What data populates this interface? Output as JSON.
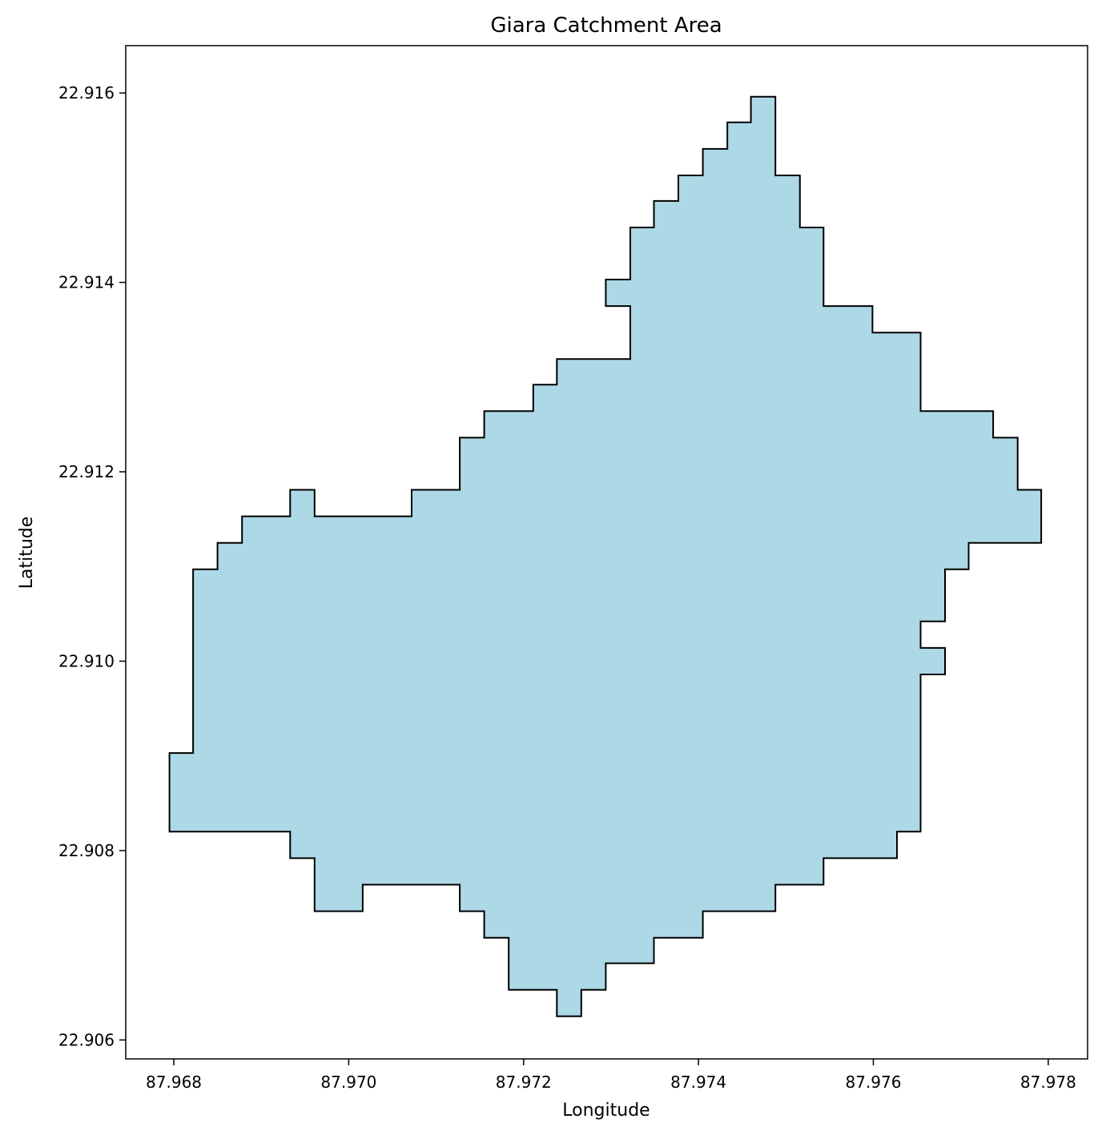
{
  "title": "Giara Catchment Area",
  "xlabel": "Longitude",
  "ylabel": "Latitude",
  "colors": {
    "fill": "#add8e6",
    "edge": "#000000",
    "background": "#ffffff"
  },
  "chart_data": {
    "type": "map-polygon",
    "xlim": [
      87.96745,
      87.97845
    ],
    "ylim": [
      22.9058,
      22.9165
    ],
    "x_ticks": [
      "87.968",
      "87.970",
      "87.972",
      "87.974",
      "87.976",
      "87.978"
    ],
    "y_ticks": [
      "22.906",
      "22.908",
      "22.910",
      "22.912",
      "22.914",
      "22.916"
    ],
    "polygon": [
      [
        87.9746,
        22.91596
      ],
      [
        87.97488,
        22.91596
      ],
      [
        87.97488,
        22.91513
      ],
      [
        87.97516,
        22.91513
      ],
      [
        87.97516,
        22.91458
      ],
      [
        87.97543,
        22.91458
      ],
      [
        87.97543,
        22.91375
      ],
      [
        87.97599,
        22.91375
      ],
      [
        87.97599,
        22.91347
      ],
      [
        87.97654,
        22.91347
      ],
      [
        87.97654,
        22.91264
      ],
      [
        87.97737,
        22.91264
      ],
      [
        87.97737,
        22.91236
      ],
      [
        87.97765,
        22.91236
      ],
      [
        87.97765,
        22.91181
      ],
      [
        87.97792,
        22.91181
      ],
      [
        87.97792,
        22.91125
      ],
      [
        87.97709,
        22.91125
      ],
      [
        87.97709,
        22.91097
      ],
      [
        87.97682,
        22.91097
      ],
      [
        87.97682,
        22.91042
      ],
      [
        87.97654,
        22.91042
      ],
      [
        87.97654,
        22.91014
      ],
      [
        87.97682,
        22.91014
      ],
      [
        87.97682,
        22.90986
      ],
      [
        87.97654,
        22.90986
      ],
      [
        87.97654,
        22.9082
      ],
      [
        87.97627,
        22.9082
      ],
      [
        87.97627,
        22.90792
      ],
      [
        87.97543,
        22.90792
      ],
      [
        87.97543,
        22.90764
      ],
      [
        87.97488,
        22.90764
      ],
      [
        87.97488,
        22.90736
      ],
      [
        87.97405,
        22.90736
      ],
      [
        87.97405,
        22.90708
      ],
      [
        87.97349,
        22.90708
      ],
      [
        87.97349,
        22.90681
      ],
      [
        87.97294,
        22.90681
      ],
      [
        87.97294,
        22.90653
      ],
      [
        87.97266,
        22.90653
      ],
      [
        87.97266,
        22.90625
      ],
      [
        87.97238,
        22.90625
      ],
      [
        87.97238,
        22.90653
      ],
      [
        87.97183,
        22.90653
      ],
      [
        87.97183,
        22.90708
      ],
      [
        87.97155,
        22.90708
      ],
      [
        87.97155,
        22.90736
      ],
      [
        87.97127,
        22.90736
      ],
      [
        87.97127,
        22.90764
      ],
      [
        87.97016,
        22.90764
      ],
      [
        87.97016,
        22.90736
      ],
      [
        87.96961,
        22.90736
      ],
      [
        87.96961,
        22.90792
      ],
      [
        87.96933,
        22.90792
      ],
      [
        87.96933,
        22.9082
      ],
      [
        87.96795,
        22.9082
      ],
      [
        87.96795,
        22.90903
      ],
      [
        87.96822,
        22.90903
      ],
      [
        87.96822,
        22.91097
      ],
      [
        87.9685,
        22.91097
      ],
      [
        87.9685,
        22.91125
      ],
      [
        87.96878,
        22.91125
      ],
      [
        87.96878,
        22.91153
      ],
      [
        87.96933,
        22.91153
      ],
      [
        87.96933,
        22.91181
      ],
      [
        87.96961,
        22.91181
      ],
      [
        87.96961,
        22.91153
      ],
      [
        87.97072,
        22.91153
      ],
      [
        87.97072,
        22.91181
      ],
      [
        87.97127,
        22.91181
      ],
      [
        87.97127,
        22.91236
      ],
      [
        87.97155,
        22.91236
      ],
      [
        87.97155,
        22.91264
      ],
      [
        87.97211,
        22.91264
      ],
      [
        87.97211,
        22.91292
      ],
      [
        87.97238,
        22.91292
      ],
      [
        87.97238,
        22.91319
      ],
      [
        87.97322,
        22.91319
      ],
      [
        87.97322,
        22.91375
      ],
      [
        87.97294,
        22.91375
      ],
      [
        87.97294,
        22.91403
      ],
      [
        87.97322,
        22.91403
      ],
      [
        87.97322,
        22.91458
      ],
      [
        87.97349,
        22.91458
      ],
      [
        87.97349,
        22.91486
      ],
      [
        87.97377,
        22.91486
      ],
      [
        87.97377,
        22.91513
      ],
      [
        87.97405,
        22.91513
      ],
      [
        87.97405,
        22.91541
      ],
      [
        87.97433,
        22.91541
      ],
      [
        87.97433,
        22.91569
      ],
      [
        87.9746,
        22.91569
      ]
    ]
  }
}
